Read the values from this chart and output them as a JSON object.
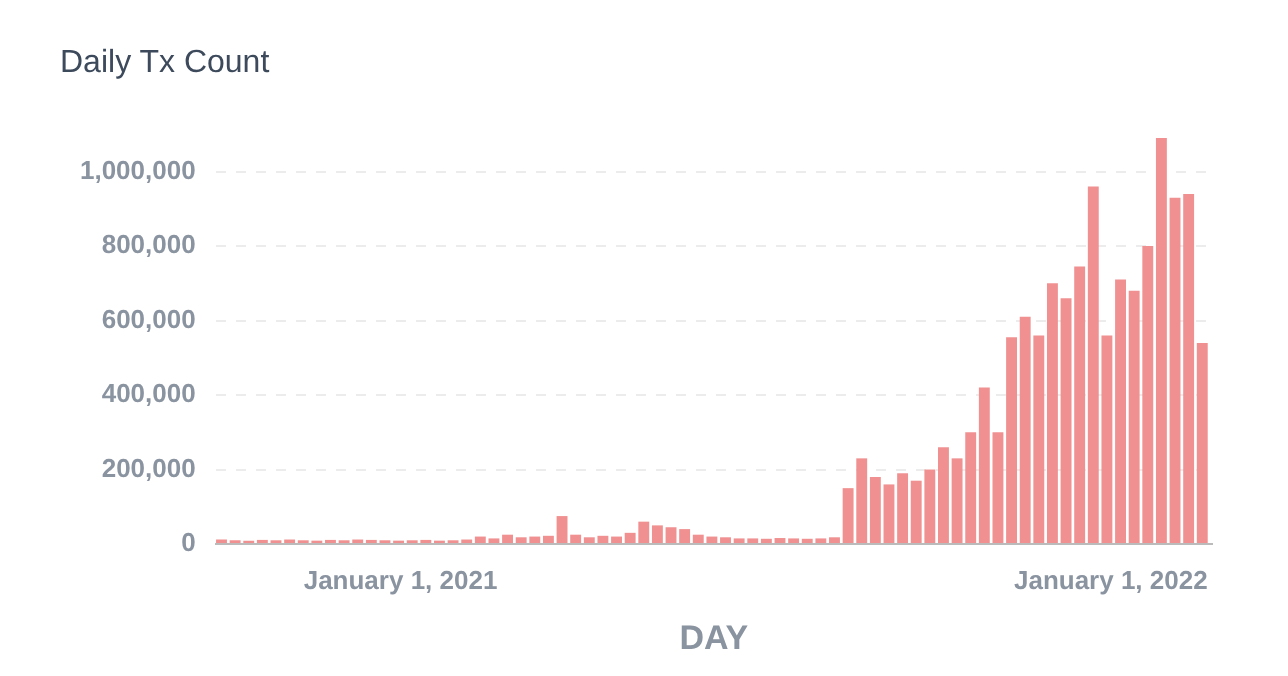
{
  "chart_data": {
    "type": "bar",
    "title": "Daily Tx Count",
    "xlabel": "DAY",
    "color": "#f09090",
    "x": [
      "2020-10-01",
      "2020-10-08",
      "2020-10-15",
      "2020-10-22",
      "2020-10-29",
      "2020-11-05",
      "2020-11-12",
      "2020-11-19",
      "2020-11-26",
      "2020-12-03",
      "2020-12-10",
      "2020-12-17",
      "2020-12-24",
      "2020-12-31",
      "2021-01-07",
      "2021-01-14",
      "2021-01-21",
      "2021-01-28",
      "2021-02-04",
      "2021-02-11",
      "2021-02-18",
      "2021-02-25",
      "2021-03-04",
      "2021-03-11",
      "2021-03-18",
      "2021-03-25",
      "2021-04-01",
      "2021-04-08",
      "2021-04-15",
      "2021-04-22",
      "2021-04-29",
      "2021-05-06",
      "2021-05-13",
      "2021-05-20",
      "2021-05-27",
      "2021-06-03",
      "2021-06-10",
      "2021-06-17",
      "2021-06-24",
      "2021-07-01",
      "2021-07-08",
      "2021-07-15",
      "2021-07-22",
      "2021-07-29",
      "2021-08-05",
      "2021-08-12",
      "2021-08-19",
      "2021-08-26",
      "2021-09-02",
      "2021-09-09",
      "2021-09-16",
      "2021-09-23",
      "2021-09-30",
      "2021-10-07",
      "2021-10-14",
      "2021-10-21",
      "2021-10-28",
      "2021-11-04",
      "2021-11-11",
      "2021-11-18",
      "2021-11-25",
      "2021-12-02",
      "2021-12-09",
      "2021-12-16",
      "2021-12-23",
      "2021-12-30",
      "2022-01-06",
      "2022-01-13",
      "2022-01-20",
      "2022-01-27",
      "2022-02-03",
      "2022-02-10",
      "2022-02-17"
    ],
    "values": [
      12000,
      10000,
      9000,
      11000,
      10000,
      12000,
      10000,
      9000,
      11000,
      10000,
      12000,
      11000,
      10000,
      9000,
      10000,
      11000,
      9000,
      10000,
      12000,
      20000,
      15000,
      25000,
      18000,
      20000,
      22000,
      75000,
      25000,
      18000,
      22000,
      20000,
      30000,
      60000,
      50000,
      45000,
      40000,
      25000,
      20000,
      18000,
      15000,
      15000,
      14000,
      16000,
      15000,
      14000,
      15000,
      18000,
      150000,
      230000,
      180000,
      160000,
      190000,
      170000,
      200000,
      260000,
      230000,
      300000,
      420000,
      300000,
      555000,
      610000,
      560000,
      700000,
      660000,
      745000,
      960000,
      560000,
      710000,
      680000,
      800000,
      1090000,
      930000,
      940000,
      540000
    ],
    "xlim": [
      "2020-09-28",
      "2022-02-22"
    ],
    "xticks": [
      {
        "value": "2021-01-01",
        "label": "January 1, 2021"
      },
      {
        "value": "2022-01-01",
        "label": "January 1, 2022"
      }
    ],
    "ylim": [
      0,
      1100000
    ],
    "yticks": [
      0,
      {
        "value": 200000,
        "label": "200,000"
      },
      {
        "value": 400000,
        "label": "400,000"
      },
      {
        "value": 600000,
        "label": "600,000"
      },
      {
        "value": 800000,
        "label": "800,000"
      },
      {
        "value": 1000000,
        "label": "1,000,000"
      }
    ],
    "grid": "y",
    "legend": false
  }
}
